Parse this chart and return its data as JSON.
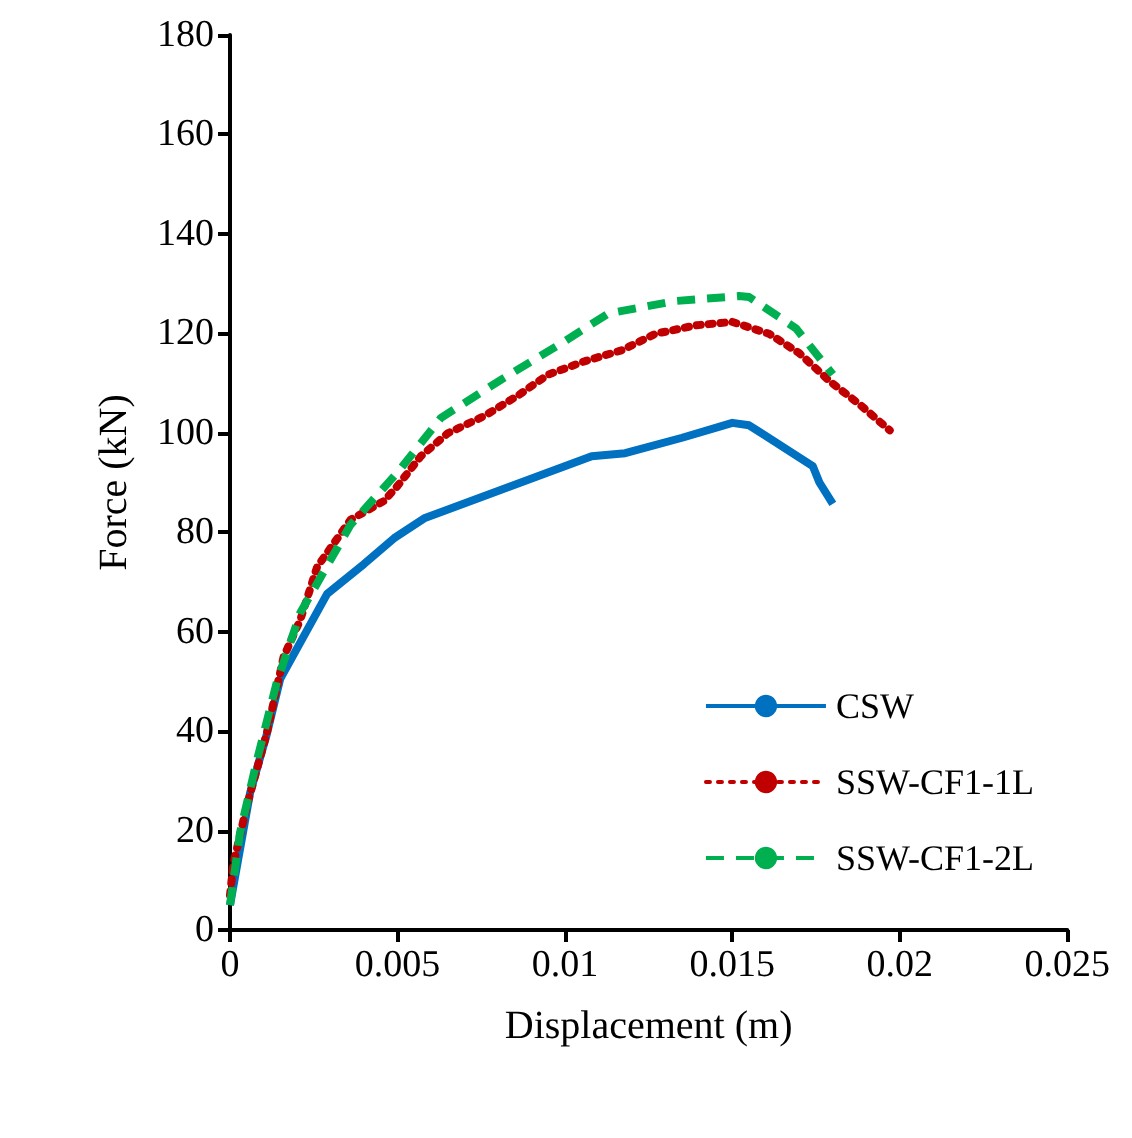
{
  "chart_data": {
    "type": "line",
    "xlabel": "Displacement (m)",
    "ylabel": "Force (kN)",
    "xlim": [
      0,
      0.025
    ],
    "xticks": [
      0,
      0.005,
      0.01,
      0.015,
      0.02,
      0.025
    ],
    "ylim": [
      0,
      180
    ],
    "yticks": [
      0,
      20,
      40,
      60,
      80,
      100,
      120,
      140,
      160,
      180
    ],
    "grid": false,
    "legend": "bottom right",
    "marker": "none",
    "series": [
      {
        "name": "CSW",
        "color": "#0070c0",
        "line_style": "solid",
        "x": [
          0,
          0.0006,
          0.0011,
          0.0015,
          0.0029,
          0.004,
          0.0049,
          0.0058,
          0.0108,
          0.0118,
          0.0135,
          0.015,
          0.0155,
          0.0174,
          0.0176,
          0.018
        ],
        "values": [
          5,
          27.6,
          39.4,
          50.5,
          67.6,
          73.6,
          78.8,
          82.8,
          95.3,
          95.9,
          99,
          102,
          101.5,
          93.3,
          90,
          85.7
        ]
      },
      {
        "name": "SSW-CF1-1L",
        "color": "#c00000",
        "line_style": "dotted",
        "x": [
          0,
          0.0001,
          0.0005,
          0.0011,
          0.0016,
          0.0021,
          0.0026,
          0.0036,
          0.0046,
          0.005,
          0.0057,
          0.0065,
          0.0076,
          0.0086,
          0.0095,
          0.0106,
          0.0117,
          0.0127,
          0.0139,
          0.015,
          0.0161,
          0.017,
          0.0179,
          0.0188,
          0.0197
        ],
        "values": [
          7,
          13.3,
          24.9,
          39.6,
          54.9,
          62.4,
          73,
          82.5,
          86.3,
          89.3,
          95.3,
          99.9,
          103.4,
          107.5,
          111.7,
          114.4,
          116.6,
          119.9,
          121.6,
          122.3,
          119.9,
          116,
          110.4,
          105.7,
          100.5
        ]
      },
      {
        "name": "SSW-CF1-2L",
        "color": "#00b050",
        "line_style": "dashed",
        "x": [
          0,
          0.0003,
          0.0008,
          0.0014,
          0.0018,
          0.0021,
          0.0036,
          0.005,
          0.0063,
          0.0081,
          0.0098,
          0.0113,
          0.0133,
          0.0152,
          0.0155,
          0.0169,
          0.018
        ],
        "values": [
          5,
          19.6,
          34,
          49.9,
          57.8,
          63.8,
          81.5,
          92,
          103,
          110.7,
          117.6,
          124,
          126.5,
          127.5,
          127.3,
          121,
          111.7
        ]
      }
    ]
  }
}
